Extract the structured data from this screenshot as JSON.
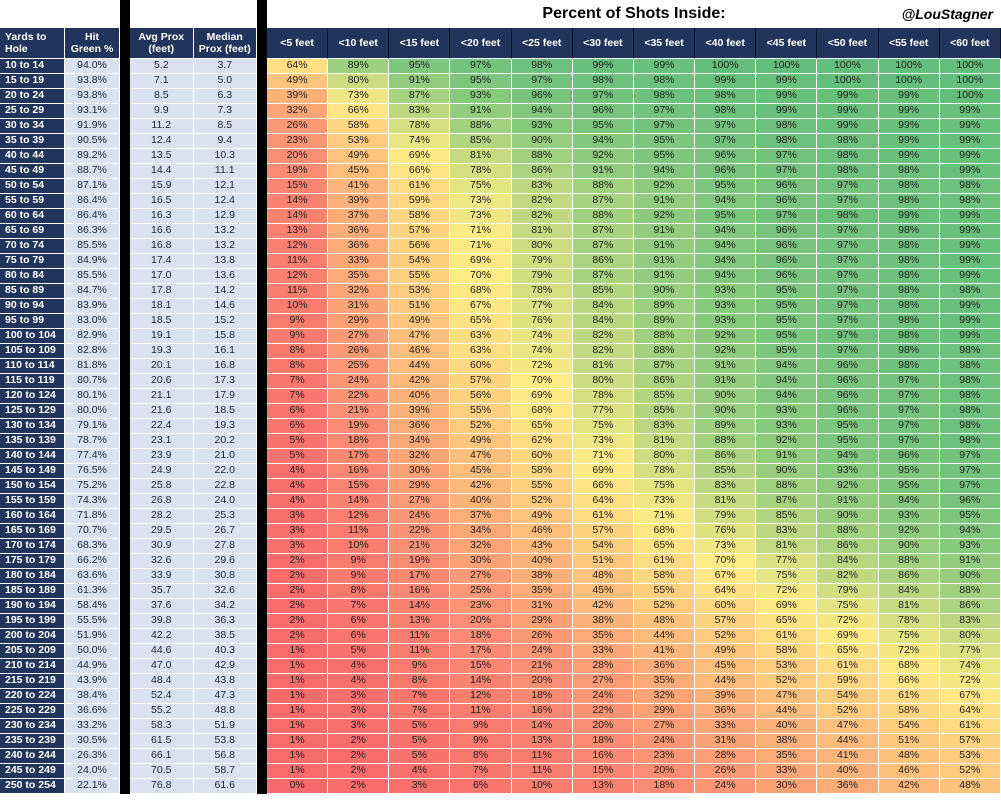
{
  "title": "Percent of Shots Inside:",
  "credit": "@LouStagner",
  "colors": {
    "header_bg": "#21355C",
    "header_text": "#FFFFFF",
    "light_bg": "#DAE1F1",
    "light_text": "#1A2638",
    "heat_text": "#1F1F1F",
    "separator": "#000000",
    "grid_line": "#FFFFFF"
  },
  "chart_data": {
    "type": "heatmap",
    "title": "Percent of Shots Inside:",
    "left_headers": [
      "Yards to\nHole",
      "Hit\nGreen %",
      "Avg Prox\n(feet)",
      "Median\nProx (feet)"
    ],
    "heat_headers": [
      "<5 feet",
      "<10 feet",
      "<15 feet",
      "<20 feet",
      "<25 feet",
      "<30 feet",
      "<35 feet",
      "<40 feet",
      "<45 feet",
      "<50 feet",
      "<55 feet",
      "<60 feet"
    ],
    "color_scale": {
      "min": 0,
      "mid": 70,
      "max": 100,
      "min_color": "#F8696B",
      "mid_color": "#FFEB84",
      "max_color": "#63BE7B"
    },
    "rows": [
      {
        "yards": "10 to 14",
        "hit_green": "94.0%",
        "avg_prox": "5.2",
        "median_prox": "3.7",
        "pct": [
          64,
          89,
          95,
          97,
          98,
          99,
          99,
          100,
          100,
          100,
          100,
          100
        ]
      },
      {
        "yards": "15 to 19",
        "hit_green": "93.8%",
        "avg_prox": "7.1",
        "median_prox": "5.0",
        "pct": [
          49,
          80,
          91,
          95,
          97,
          98,
          98,
          99,
          99,
          100,
          100,
          100
        ]
      },
      {
        "yards": "20 to 24",
        "hit_green": "93.8%",
        "avg_prox": "8.5",
        "median_prox": "6.3",
        "pct": [
          39,
          73,
          87,
          93,
          96,
          97,
          98,
          98,
          99,
          99,
          99,
          100
        ]
      },
      {
        "yards": "25 to 29",
        "hit_green": "93.1%",
        "avg_prox": "9.9",
        "median_prox": "7.3",
        "pct": [
          32,
          66,
          83,
          91,
          94,
          96,
          97,
          98,
          99,
          99,
          99,
          99
        ]
      },
      {
        "yards": "30 to 34",
        "hit_green": "91.9%",
        "avg_prox": "11.2",
        "median_prox": "8.5",
        "pct": [
          26,
          58,
          78,
          88,
          93,
          95,
          97,
          97,
          98,
          99,
          99,
          99
        ]
      },
      {
        "yards": "35 to 39",
        "hit_green": "90.5%",
        "avg_prox": "12.4",
        "median_prox": "9.4",
        "pct": [
          23,
          53,
          74,
          85,
          90,
          94,
          95,
          97,
          98,
          98,
          99,
          99
        ]
      },
      {
        "yards": "40 to 44",
        "hit_green": "89.2%",
        "avg_prox": "13.5",
        "median_prox": "10.3",
        "pct": [
          20,
          49,
          69,
          81,
          88,
          92,
          95,
          96,
          97,
          98,
          99,
          99
        ]
      },
      {
        "yards": "45 to 49",
        "hit_green": "88.7%",
        "avg_prox": "14.4",
        "median_prox": "11.1",
        "pct": [
          19,
          45,
          66,
          78,
          86,
          91,
          94,
          96,
          97,
          98,
          98,
          99
        ]
      },
      {
        "yards": "50 to 54",
        "hit_green": "87.1%",
        "avg_prox": "15.9",
        "median_prox": "12.1",
        "pct": [
          15,
          41,
          61,
          75,
          83,
          88,
          92,
          95,
          96,
          97,
          98,
          98
        ]
      },
      {
        "yards": "55 to 59",
        "hit_green": "86.4%",
        "avg_prox": "16.5",
        "median_prox": "12.4",
        "pct": [
          14,
          39,
          59,
          73,
          82,
          87,
          91,
          94,
          96,
          97,
          98,
          98
        ]
      },
      {
        "yards": "60 to 64",
        "hit_green": "86.4%",
        "avg_prox": "16.3",
        "median_prox": "12.9",
        "pct": [
          14,
          37,
          58,
          73,
          82,
          88,
          92,
          95,
          97,
          98,
          99,
          99
        ]
      },
      {
        "yards": "65 to 69",
        "hit_green": "86.3%",
        "avg_prox": "16.6",
        "median_prox": "13.2",
        "pct": [
          13,
          36,
          57,
          71,
          81,
          87,
          91,
          94,
          96,
          97,
          98,
          99
        ]
      },
      {
        "yards": "70 to 74",
        "hit_green": "85.5%",
        "avg_prox": "16.8",
        "median_prox": "13.2",
        "pct": [
          12,
          36,
          56,
          71,
          80,
          87,
          91,
          94,
          96,
          97,
          98,
          99
        ]
      },
      {
        "yards": "75 to 79",
        "hit_green": "84.9%",
        "avg_prox": "17.4",
        "median_prox": "13.8",
        "pct": [
          11,
          33,
          54,
          69,
          79,
          86,
          91,
          94,
          96,
          97,
          98,
          99
        ]
      },
      {
        "yards": "80 to 84",
        "hit_green": "85.5%",
        "avg_prox": "17.0",
        "median_prox": "13.6",
        "pct": [
          12,
          35,
          55,
          70,
          79,
          87,
          91,
          94,
          96,
          97,
          98,
          99
        ]
      },
      {
        "yards": "85 to 89",
        "hit_green": "84.7%",
        "avg_prox": "17.8",
        "median_prox": "14.2",
        "pct": [
          11,
          32,
          53,
          68,
          78,
          85,
          90,
          93,
          95,
          97,
          98,
          98
        ]
      },
      {
        "yards": "90 to 94",
        "hit_green": "83.9%",
        "avg_prox": "18.1",
        "median_prox": "14.6",
        "pct": [
          10,
          31,
          51,
          67,
          77,
          84,
          89,
          93,
          95,
          97,
          98,
          99
        ]
      },
      {
        "yards": "95 to 99",
        "hit_green": "83.0%",
        "avg_prox": "18.5",
        "median_prox": "15.2",
        "pct": [
          9,
          29,
          49,
          65,
          76,
          84,
          89,
          93,
          95,
          97,
          98,
          99
        ]
      },
      {
        "yards": "100 to 104",
        "hit_green": "82.9%",
        "avg_prox": "19.1",
        "median_prox": "15.8",
        "pct": [
          9,
          27,
          47,
          63,
          74,
          82,
          88,
          92,
          95,
          97,
          98,
          99
        ]
      },
      {
        "yards": "105 to 109",
        "hit_green": "82.8%",
        "avg_prox": "19.3",
        "median_prox": "16.1",
        "pct": [
          8,
          26,
          46,
          63,
          74,
          82,
          88,
          92,
          95,
          97,
          98,
          98
        ]
      },
      {
        "yards": "110 to 114",
        "hit_green": "81.8%",
        "avg_prox": "20.1",
        "median_prox": "16.8",
        "pct": [
          8,
          25,
          44,
          60,
          72,
          81,
          87,
          91,
          94,
          96,
          98,
          98
        ]
      },
      {
        "yards": "115 to 119",
        "hit_green": "80.7%",
        "avg_prox": "20.6",
        "median_prox": "17.3",
        "pct": [
          7,
          24,
          42,
          57,
          70,
          80,
          86,
          91,
          94,
          96,
          97,
          98
        ]
      },
      {
        "yards": "120 to 124",
        "hit_green": "80.1%",
        "avg_prox": "21.1",
        "median_prox": "17.9",
        "pct": [
          7,
          22,
          40,
          56,
          69,
          78,
          85,
          90,
          94,
          96,
          97,
          98
        ]
      },
      {
        "yards": "125 to 129",
        "hit_green": "80.0%",
        "avg_prox": "21.6",
        "median_prox": "18.5",
        "pct": [
          6,
          21,
          39,
          55,
          68,
          77,
          85,
          90,
          93,
          96,
          97,
          98
        ]
      },
      {
        "yards": "130 to 134",
        "hit_green": "79.1%",
        "avg_prox": "22.4",
        "median_prox": "19.3",
        "pct": [
          6,
          19,
          36,
          52,
          65,
          75,
          83,
          89,
          93,
          95,
          97,
          98
        ]
      },
      {
        "yards": "135 to 139",
        "hit_green": "78.7%",
        "avg_prox": "23.1",
        "median_prox": "20.2",
        "pct": [
          5,
          18,
          34,
          49,
          62,
          73,
          81,
          88,
          92,
          95,
          97,
          98
        ]
      },
      {
        "yards": "140 to 144",
        "hit_green": "77.4%",
        "avg_prox": "23.9",
        "median_prox": "21.0",
        "pct": [
          5,
          17,
          32,
          47,
          60,
          71,
          80,
          86,
          91,
          94,
          96,
          97
        ]
      },
      {
        "yards": "145 to 149",
        "hit_green": "76.5%",
        "avg_prox": "24.9",
        "median_prox": "22.0",
        "pct": [
          4,
          16,
          30,
          45,
          58,
          69,
          78,
          85,
          90,
          93,
          95,
          97
        ]
      },
      {
        "yards": "150 to 154",
        "hit_green": "75.2%",
        "avg_prox": "25.8",
        "median_prox": "22.8",
        "pct": [
          4,
          15,
          29,
          42,
          55,
          66,
          75,
          83,
          88,
          92,
          95,
          97
        ]
      },
      {
        "yards": "155 to 159",
        "hit_green": "74.3%",
        "avg_prox": "26.8",
        "median_prox": "24.0",
        "pct": [
          4,
          14,
          27,
          40,
          52,
          64,
          73,
          81,
          87,
          91,
          94,
          96
        ]
      },
      {
        "yards": "160 to 164",
        "hit_green": "71.8%",
        "avg_prox": "28.2",
        "median_prox": "25.3",
        "pct": [
          3,
          12,
          24,
          37,
          49,
          61,
          71,
          79,
          85,
          90,
          93,
          95
        ]
      },
      {
        "yards": "165 to 169",
        "hit_green": "70.7%",
        "avg_prox": "29.5",
        "median_prox": "26.7",
        "pct": [
          3,
          11,
          22,
          34,
          46,
          57,
          68,
          76,
          83,
          88,
          92,
          94
        ]
      },
      {
        "yards": "170 to 174",
        "hit_green": "68.3%",
        "avg_prox": "30.9",
        "median_prox": "27.8",
        "pct": [
          3,
          10,
          21,
          32,
          43,
          54,
          65,
          73,
          81,
          86,
          90,
          93
        ]
      },
      {
        "yards": "175 to 179",
        "hit_green": "66.2%",
        "avg_prox": "32.6",
        "median_prox": "29.6",
        "pct": [
          2,
          9,
          19,
          30,
          40,
          51,
          61,
          70,
          77,
          84,
          88,
          91
        ]
      },
      {
        "yards": "180 to 184",
        "hit_green": "63.6%",
        "avg_prox": "33.9",
        "median_prox": "30.8",
        "pct": [
          2,
          9,
          17,
          27,
          38,
          48,
          58,
          67,
          75,
          82,
          86,
          90
        ]
      },
      {
        "yards": "185 to 189",
        "hit_green": "61.3%",
        "avg_prox": "35.7",
        "median_prox": "32.6",
        "pct": [
          2,
          8,
          16,
          25,
          35,
          45,
          55,
          64,
          72,
          79,
          84,
          88
        ]
      },
      {
        "yards": "190 to 194",
        "hit_green": "58.4%",
        "avg_prox": "37.6",
        "median_prox": "34.2",
        "pct": [
          2,
          7,
          14,
          23,
          31,
          42,
          52,
          60,
          69,
          75,
          81,
          86
        ]
      },
      {
        "yards": "195 to 199",
        "hit_green": "55.5%",
        "avg_prox": "39.8",
        "median_prox": "36.3",
        "pct": [
          2,
          6,
          13,
          20,
          29,
          38,
          48,
          57,
          65,
          72,
          78,
          83
        ]
      },
      {
        "yards": "200 to 204",
        "hit_green": "51.9%",
        "avg_prox": "42.2",
        "median_prox": "38.5",
        "pct": [
          2,
          6,
          11,
          18,
          26,
          35,
          44,
          52,
          61,
          69,
          75,
          80
        ]
      },
      {
        "yards": "205 to 209",
        "hit_green": "50.0%",
        "avg_prox": "44.6",
        "median_prox": "40.3",
        "pct": [
          1,
          5,
          11,
          17,
          24,
          33,
          41,
          49,
          58,
          65,
          72,
          77
        ]
      },
      {
        "yards": "210 to 214",
        "hit_green": "44.9%",
        "avg_prox": "47.0",
        "median_prox": "42.9",
        "pct": [
          1,
          4,
          9,
          15,
          21,
          28,
          36,
          45,
          53,
          61,
          68,
          74
        ]
      },
      {
        "yards": "215 to 219",
        "hit_green": "43.9%",
        "avg_prox": "48.4",
        "median_prox": "43.8",
        "pct": [
          1,
          4,
          8,
          14,
          20,
          27,
          35,
          44,
          52,
          59,
          66,
          72
        ]
      },
      {
        "yards": "220 to 224",
        "hit_green": "38.4%",
        "avg_prox": "52.4",
        "median_prox": "47.3",
        "pct": [
          1,
          3,
          7,
          12,
          18,
          24,
          32,
          39,
          47,
          54,
          61,
          67
        ]
      },
      {
        "yards": "225 to 229",
        "hit_green": "36.6%",
        "avg_prox": "55.2",
        "median_prox": "48.8",
        "pct": [
          1,
          3,
          7,
          11,
          16,
          22,
          29,
          36,
          44,
          52,
          58,
          64
        ]
      },
      {
        "yards": "230 to 234",
        "hit_green": "33.2%",
        "avg_prox": "58.3",
        "median_prox": "51.9",
        "pct": [
          1,
          3,
          5,
          9,
          14,
          20,
          27,
          33,
          40,
          47,
          54,
          61
        ]
      },
      {
        "yards": "235 to 239",
        "hit_green": "30.5%",
        "avg_prox": "61.5",
        "median_prox": "53.8",
        "pct": [
          1,
          2,
          5,
          9,
          13,
          18,
          24,
          31,
          38,
          44,
          51,
          57
        ]
      },
      {
        "yards": "240 to 244",
        "hit_green": "26.3%",
        "avg_prox": "66.1",
        "median_prox": "56.8",
        "pct": [
          1,
          2,
          5,
          8,
          11,
          16,
          23,
          28,
          35,
          41,
          48,
          53
        ]
      },
      {
        "yards": "245 to 249",
        "hit_green": "24.0%",
        "avg_prox": "70.5",
        "median_prox": "58.7",
        "pct": [
          1,
          2,
          4,
          7,
          11,
          15,
          20,
          26,
          33,
          40,
          46,
          52
        ]
      },
      {
        "yards": "250 to 254",
        "hit_green": "22.1%",
        "avg_prox": "76.8",
        "median_prox": "61.6",
        "pct": [
          0,
          2,
          3,
          6,
          10,
          13,
          18,
          24,
          30,
          36,
          42,
          48
        ]
      }
    ]
  }
}
